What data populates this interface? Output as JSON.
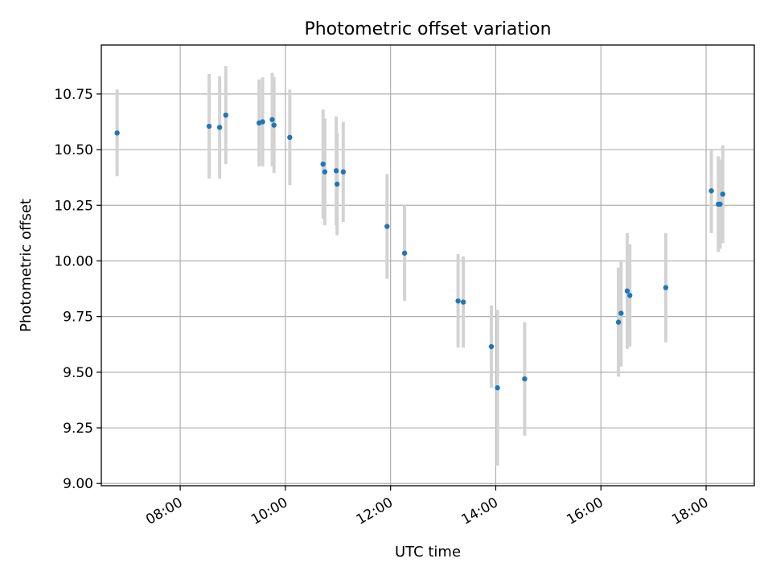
{
  "chart_data": {
    "type": "scatter",
    "title": "Photometric offset variation",
    "xlabel": "UTC time",
    "ylabel": "Photometric offset",
    "x_unit": "hours UTC",
    "xlim": [
      "06:30",
      "18:55"
    ],
    "ylim": [
      8.99,
      10.97
    ],
    "x_ticks": [
      "08:00",
      "10:00",
      "12:00",
      "14:00",
      "16:00",
      "18:00"
    ],
    "y_ticks": [
      "9.00",
      "9.25",
      "9.50",
      "9.75",
      "10.00",
      "10.25",
      "10.50",
      "10.75"
    ],
    "grid": true,
    "legend": "none",
    "colors": {
      "point": "#1f77b4",
      "errorbar": "#d3d3d3",
      "grid": "#b0b0b0"
    },
    "points": [
      {
        "x": "06:48",
        "y": 10.575,
        "yerr": 0.195
      },
      {
        "x": "08:33",
        "y": 10.605,
        "yerr": 0.235
      },
      {
        "x": "08:45",
        "y": 10.6,
        "yerr": 0.23
      },
      {
        "x": "08:52",
        "y": 10.655,
        "yerr": 0.22
      },
      {
        "x": "09:30",
        "y": 10.62,
        "yerr": 0.195
      },
      {
        "x": "09:34",
        "y": 10.625,
        "yerr": 0.2
      },
      {
        "x": "09:45",
        "y": 10.635,
        "yerr": 0.21
      },
      {
        "x": "09:47",
        "y": 10.61,
        "yerr": 0.215
      },
      {
        "x": "10:05",
        "y": 10.555,
        "yerr": 0.215
      },
      {
        "x": "10:43",
        "y": 10.435,
        "yerr": 0.245
      },
      {
        "x": "10:45",
        "y": 10.4,
        "yerr": 0.24
      },
      {
        "x": "10:58",
        "y": 10.405,
        "yerr": 0.245
      },
      {
        "x": "10:59",
        "y": 10.345,
        "yerr": 0.23
      },
      {
        "x": "11:06",
        "y": 10.4,
        "yerr": 0.225
      },
      {
        "x": "11:56",
        "y": 10.155,
        "yerr": 0.235
      },
      {
        "x": "12:16",
        "y": 10.035,
        "yerr": 0.215
      },
      {
        "x": "13:17",
        "y": 9.82,
        "yerr": 0.21
      },
      {
        "x": "13:23",
        "y": 9.815,
        "yerr": 0.205
      },
      {
        "x": "13:55",
        "y": 9.615,
        "yerr": 0.185
      },
      {
        "x": "14:02",
        "y": 9.43,
        "yerr": 0.35
      },
      {
        "x": "14:33",
        "y": 9.47,
        "yerr": 0.255
      },
      {
        "x": "16:20",
        "y": 9.725,
        "yerr": 0.245
      },
      {
        "x": "16:23",
        "y": 9.765,
        "yerr": 0.24
      },
      {
        "x": "16:30",
        "y": 9.865,
        "yerr": 0.26
      },
      {
        "x": "16:33",
        "y": 9.845,
        "yerr": 0.23
      },
      {
        "x": "17:14",
        "y": 9.88,
        "yerr": 0.245
      },
      {
        "x": "18:06",
        "y": 10.315,
        "yerr": 0.19
      },
      {
        "x": "18:14",
        "y": 10.255,
        "yerr": 0.215
      },
      {
        "x": "18:16",
        "y": 10.255,
        "yerr": 0.2
      },
      {
        "x": "18:19",
        "y": 10.3,
        "yerr": 0.22
      }
    ]
  }
}
